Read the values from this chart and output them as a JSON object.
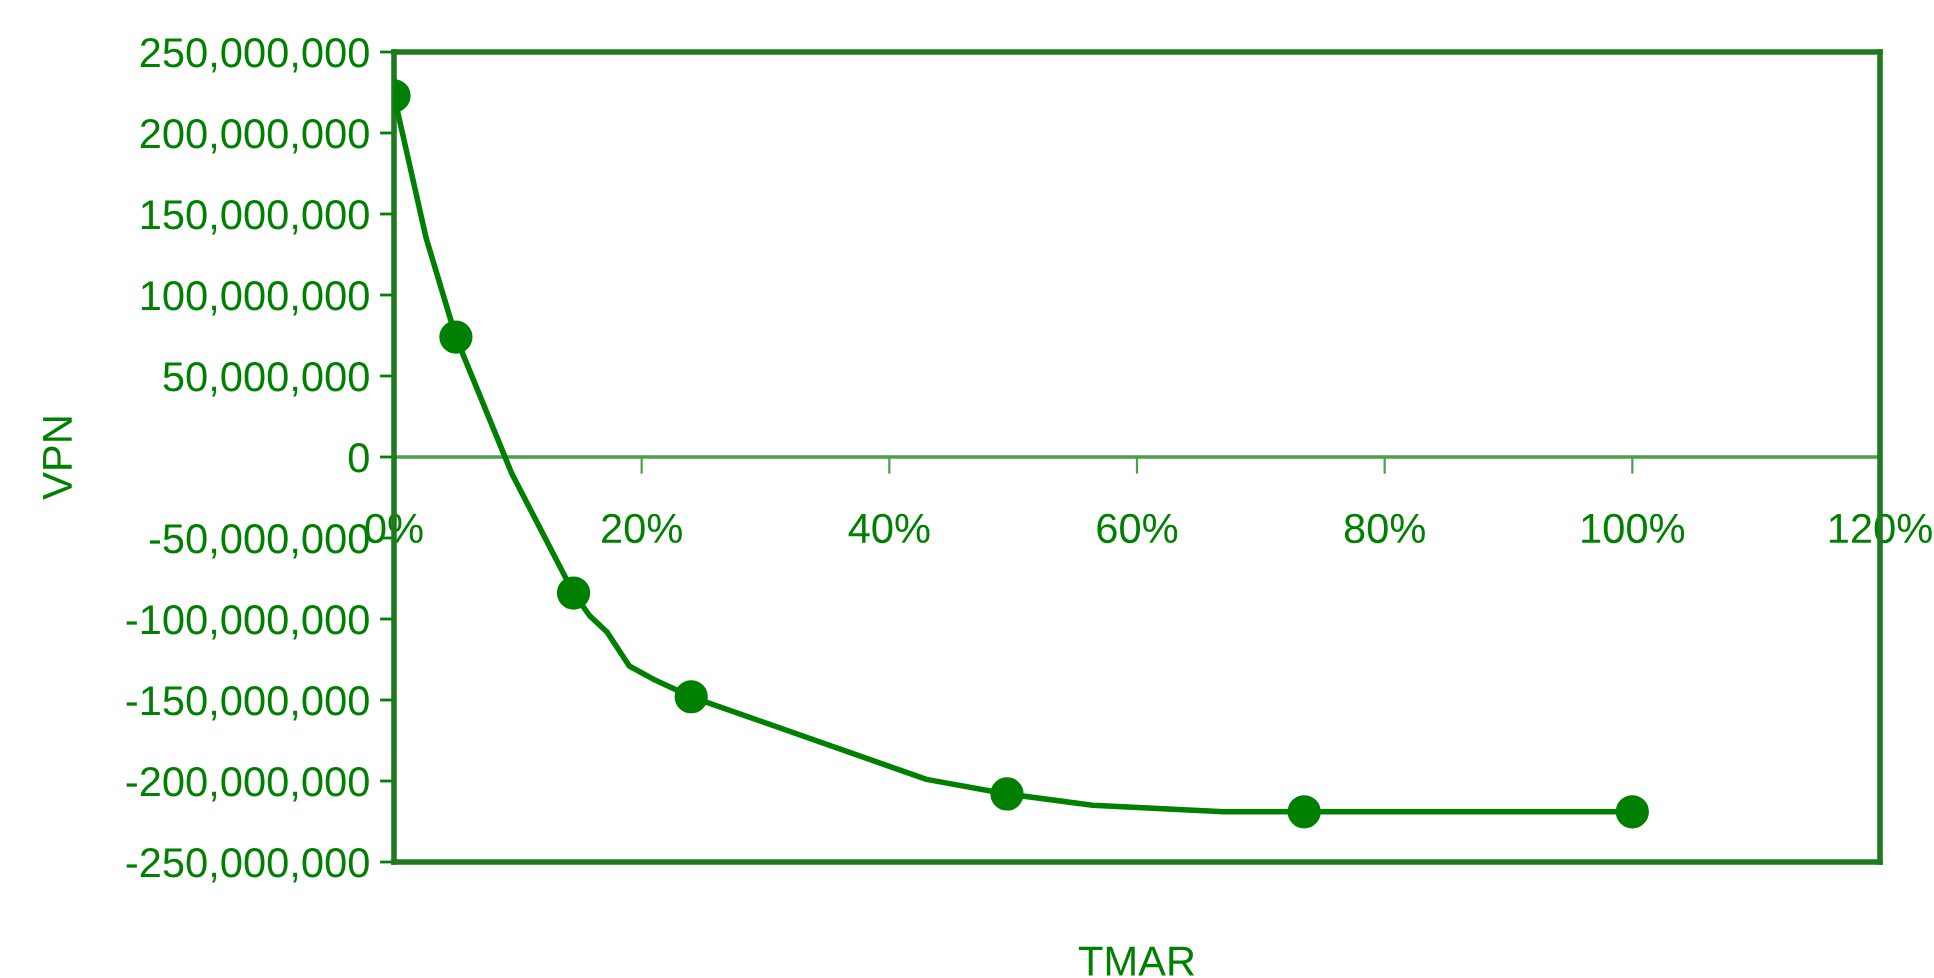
{
  "chart_data": {
    "type": "line",
    "xlabel": "TMAR",
    "ylabel": "VPN",
    "xlim": [
      0,
      120
    ],
    "xticks": [
      {
        "value": 0,
        "label": "0%"
      },
      {
        "value": 20,
        "label": "20%"
      },
      {
        "value": 40,
        "label": "40%"
      },
      {
        "value": 60,
        "label": "60%"
      },
      {
        "value": 80,
        "label": "80%"
      },
      {
        "value": 100,
        "label": "100%"
      },
      {
        "value": 120,
        "label": "120%"
      }
    ],
    "ylim": [
      -250000000,
      250000000
    ],
    "yticks": [
      {
        "value": -250000000,
        "label": "-250,000,000"
      },
      {
        "value": -200000000,
        "label": "-200,000,000"
      },
      {
        "value": -150000000,
        "label": "-150,000,000"
      },
      {
        "value": -100000000,
        "label": "-100,000,000"
      },
      {
        "value": -50000000,
        "label": "-50,000,000"
      },
      0,
      {
        "value": 50000000,
        "label": "50,000,000"
      },
      {
        "value": 100000000,
        "label": "100,000,000"
      },
      {
        "value": 150000000,
        "label": "150,000,000"
      },
      {
        "value": 200000000,
        "label": "200,000,000"
      },
      {
        "value": 250000000,
        "label": "250,000,000"
      }
    ],
    "grid": false,
    "series": [
      {
        "type": "line",
        "color": "#008000",
        "marker": "none",
        "line_style": "solid",
        "x": [
          0,
          2.6,
          5,
          9.5,
          14.5,
          15.8,
          17.2,
          19,
          20.9,
          24,
          43,
          49.5,
          56.4,
          67,
          73.5,
          100
        ],
        "values": [
          223000000,
          135000000,
          74000000,
          -10000000,
          -84000000,
          -98000000,
          -108000000,
          -129000000,
          -137000000,
          -148000000,
          -199000000,
          -208000000,
          -215000000,
          -219000000,
          -219000000,
          -219000000
        ]
      },
      {
        "type": "scatter",
        "color": "#008000",
        "marker": "circle",
        "x": [
          0,
          5,
          14.5,
          24,
          49.5,
          73.5,
          100
        ],
        "values": [
          223000000,
          74000000,
          -84000000,
          -148000000,
          -208000000,
          -219000000,
          -219000000
        ]
      }
    ]
  }
}
